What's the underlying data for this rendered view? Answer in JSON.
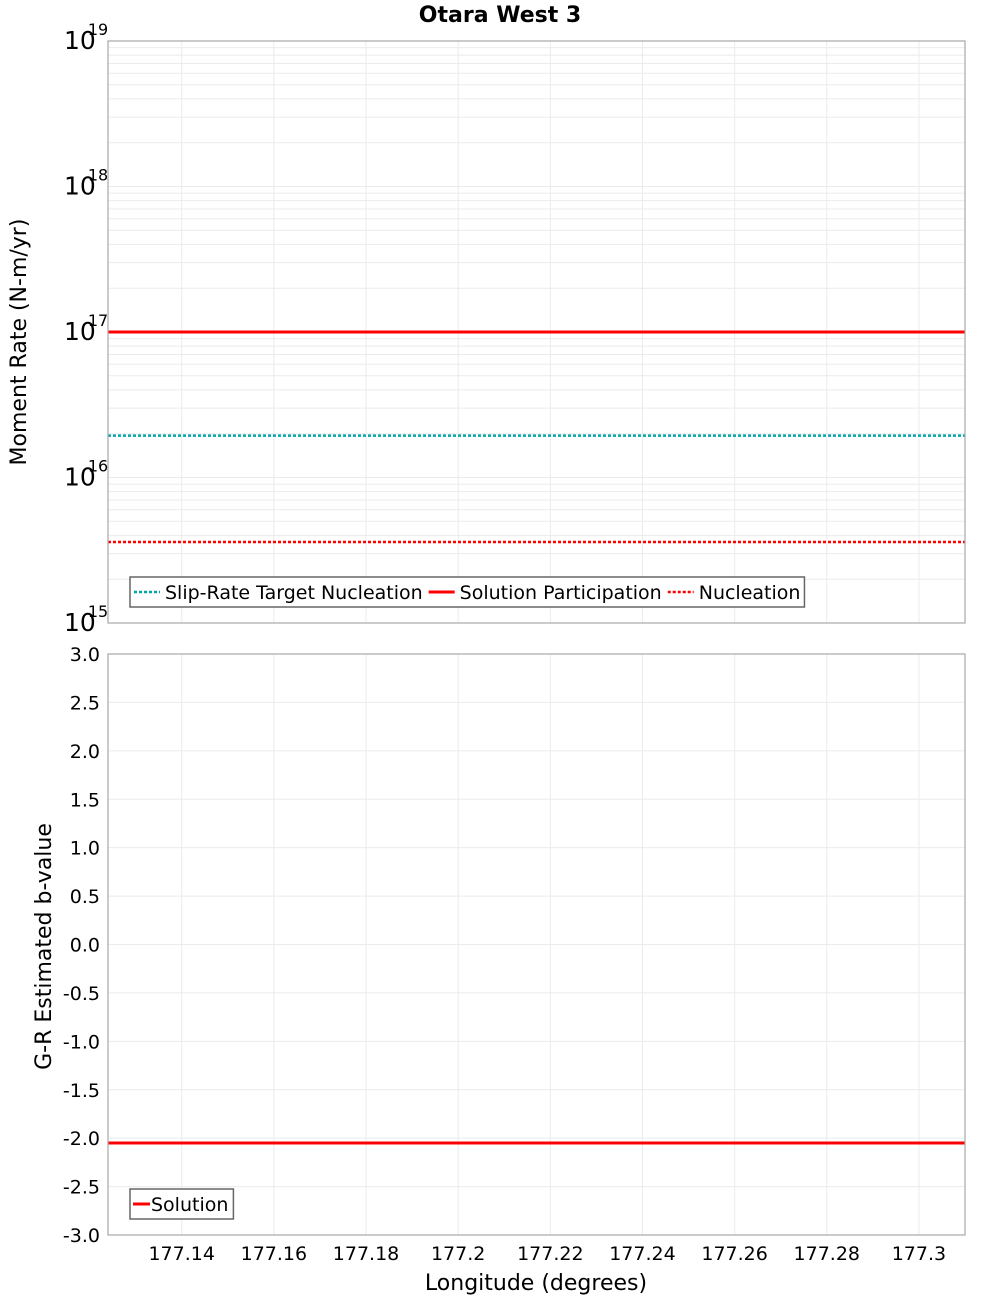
{
  "title": "Otara West 3",
  "colors": {
    "slip_rate_target": "#00a8a8",
    "solution": "#ff0000",
    "nucleation": "#ff0000",
    "grid": "#ebebeb",
    "frame": "#a8a8a8"
  },
  "top_panel": {
    "ylabel": "Moment Rate (N-m/yr)",
    "y_ticks": [
      {
        "base": "10",
        "exp": "19"
      },
      {
        "base": "10",
        "exp": "18"
      },
      {
        "base": "10",
        "exp": "17"
      },
      {
        "base": "10",
        "exp": "16"
      },
      {
        "base": "10",
        "exp": "15"
      }
    ],
    "legend": [
      {
        "label": "Slip-Rate Target Nucleation",
        "style": "dotted",
        "color": "#00a8a8"
      },
      {
        "label": "Solution Participation",
        "style": "solid",
        "color": "#ff0000"
      },
      {
        "label": "Nucleation",
        "style": "dotted",
        "color": "#ff0000"
      }
    ]
  },
  "bottom_panel": {
    "ylabel": "G-R Estimated b-value",
    "y_ticks": [
      "3.0",
      "2.5",
      "2.0",
      "1.5",
      "1.0",
      "0.5",
      "0.0",
      "-0.5",
      "-1.0",
      "-1.5",
      "-2.0",
      "-2.5",
      "-3.0"
    ],
    "legend": [
      {
        "label": "Solution",
        "style": "solid",
        "color": "#ff0000"
      }
    ]
  },
  "x_axis": {
    "label": "Longitude (degrees)",
    "ticks": [
      "177.14",
      "177.16",
      "177.18",
      "177.2",
      "177.22",
      "177.24",
      "177.26",
      "177.28",
      "177.3"
    ]
  },
  "chart_data": [
    {
      "type": "line",
      "title": "Otara West 3",
      "xlabel": "Longitude (degrees)",
      "ylabel": "Moment Rate (N-m/yr)",
      "yscale": "log",
      "xlim": [
        177.124,
        177.31
      ],
      "ylim": [
        1000000000000000.0,
        1e+19
      ],
      "grid": true,
      "legend_position": "lower-left",
      "x": [
        177.124,
        177.2175,
        177.31
      ],
      "series": [
        {
          "name": "Slip-Rate Target Nucleation",
          "style": "dotted",
          "color": "#00a8a8",
          "values": [
            1.94e+16,
            1.94e+16,
            1.94e+16
          ]
        },
        {
          "name": "Solution Participation",
          "style": "solid",
          "color": "#ff0000",
          "values": [
            1e+17,
            1e+17,
            1e+17
          ]
        },
        {
          "name": "Nucleation",
          "style": "dotted",
          "color": "#ff0000",
          "values": [
            3600000000000000.0,
            3600000000000000.0,
            3600000000000000.0
          ]
        }
      ]
    },
    {
      "type": "line",
      "xlabel": "Longitude (degrees)",
      "ylabel": "G-R Estimated b-value",
      "xlim": [
        177.124,
        177.31
      ],
      "ylim": [
        -3.0,
        3.0
      ],
      "grid": true,
      "legend_position": "lower-left",
      "x": [
        177.124,
        177.2175,
        177.31
      ],
      "series": [
        {
          "name": "Solution",
          "style": "solid",
          "color": "#ff0000",
          "values": [
            -2.05,
            -2.05,
            -2.05
          ]
        }
      ]
    }
  ]
}
